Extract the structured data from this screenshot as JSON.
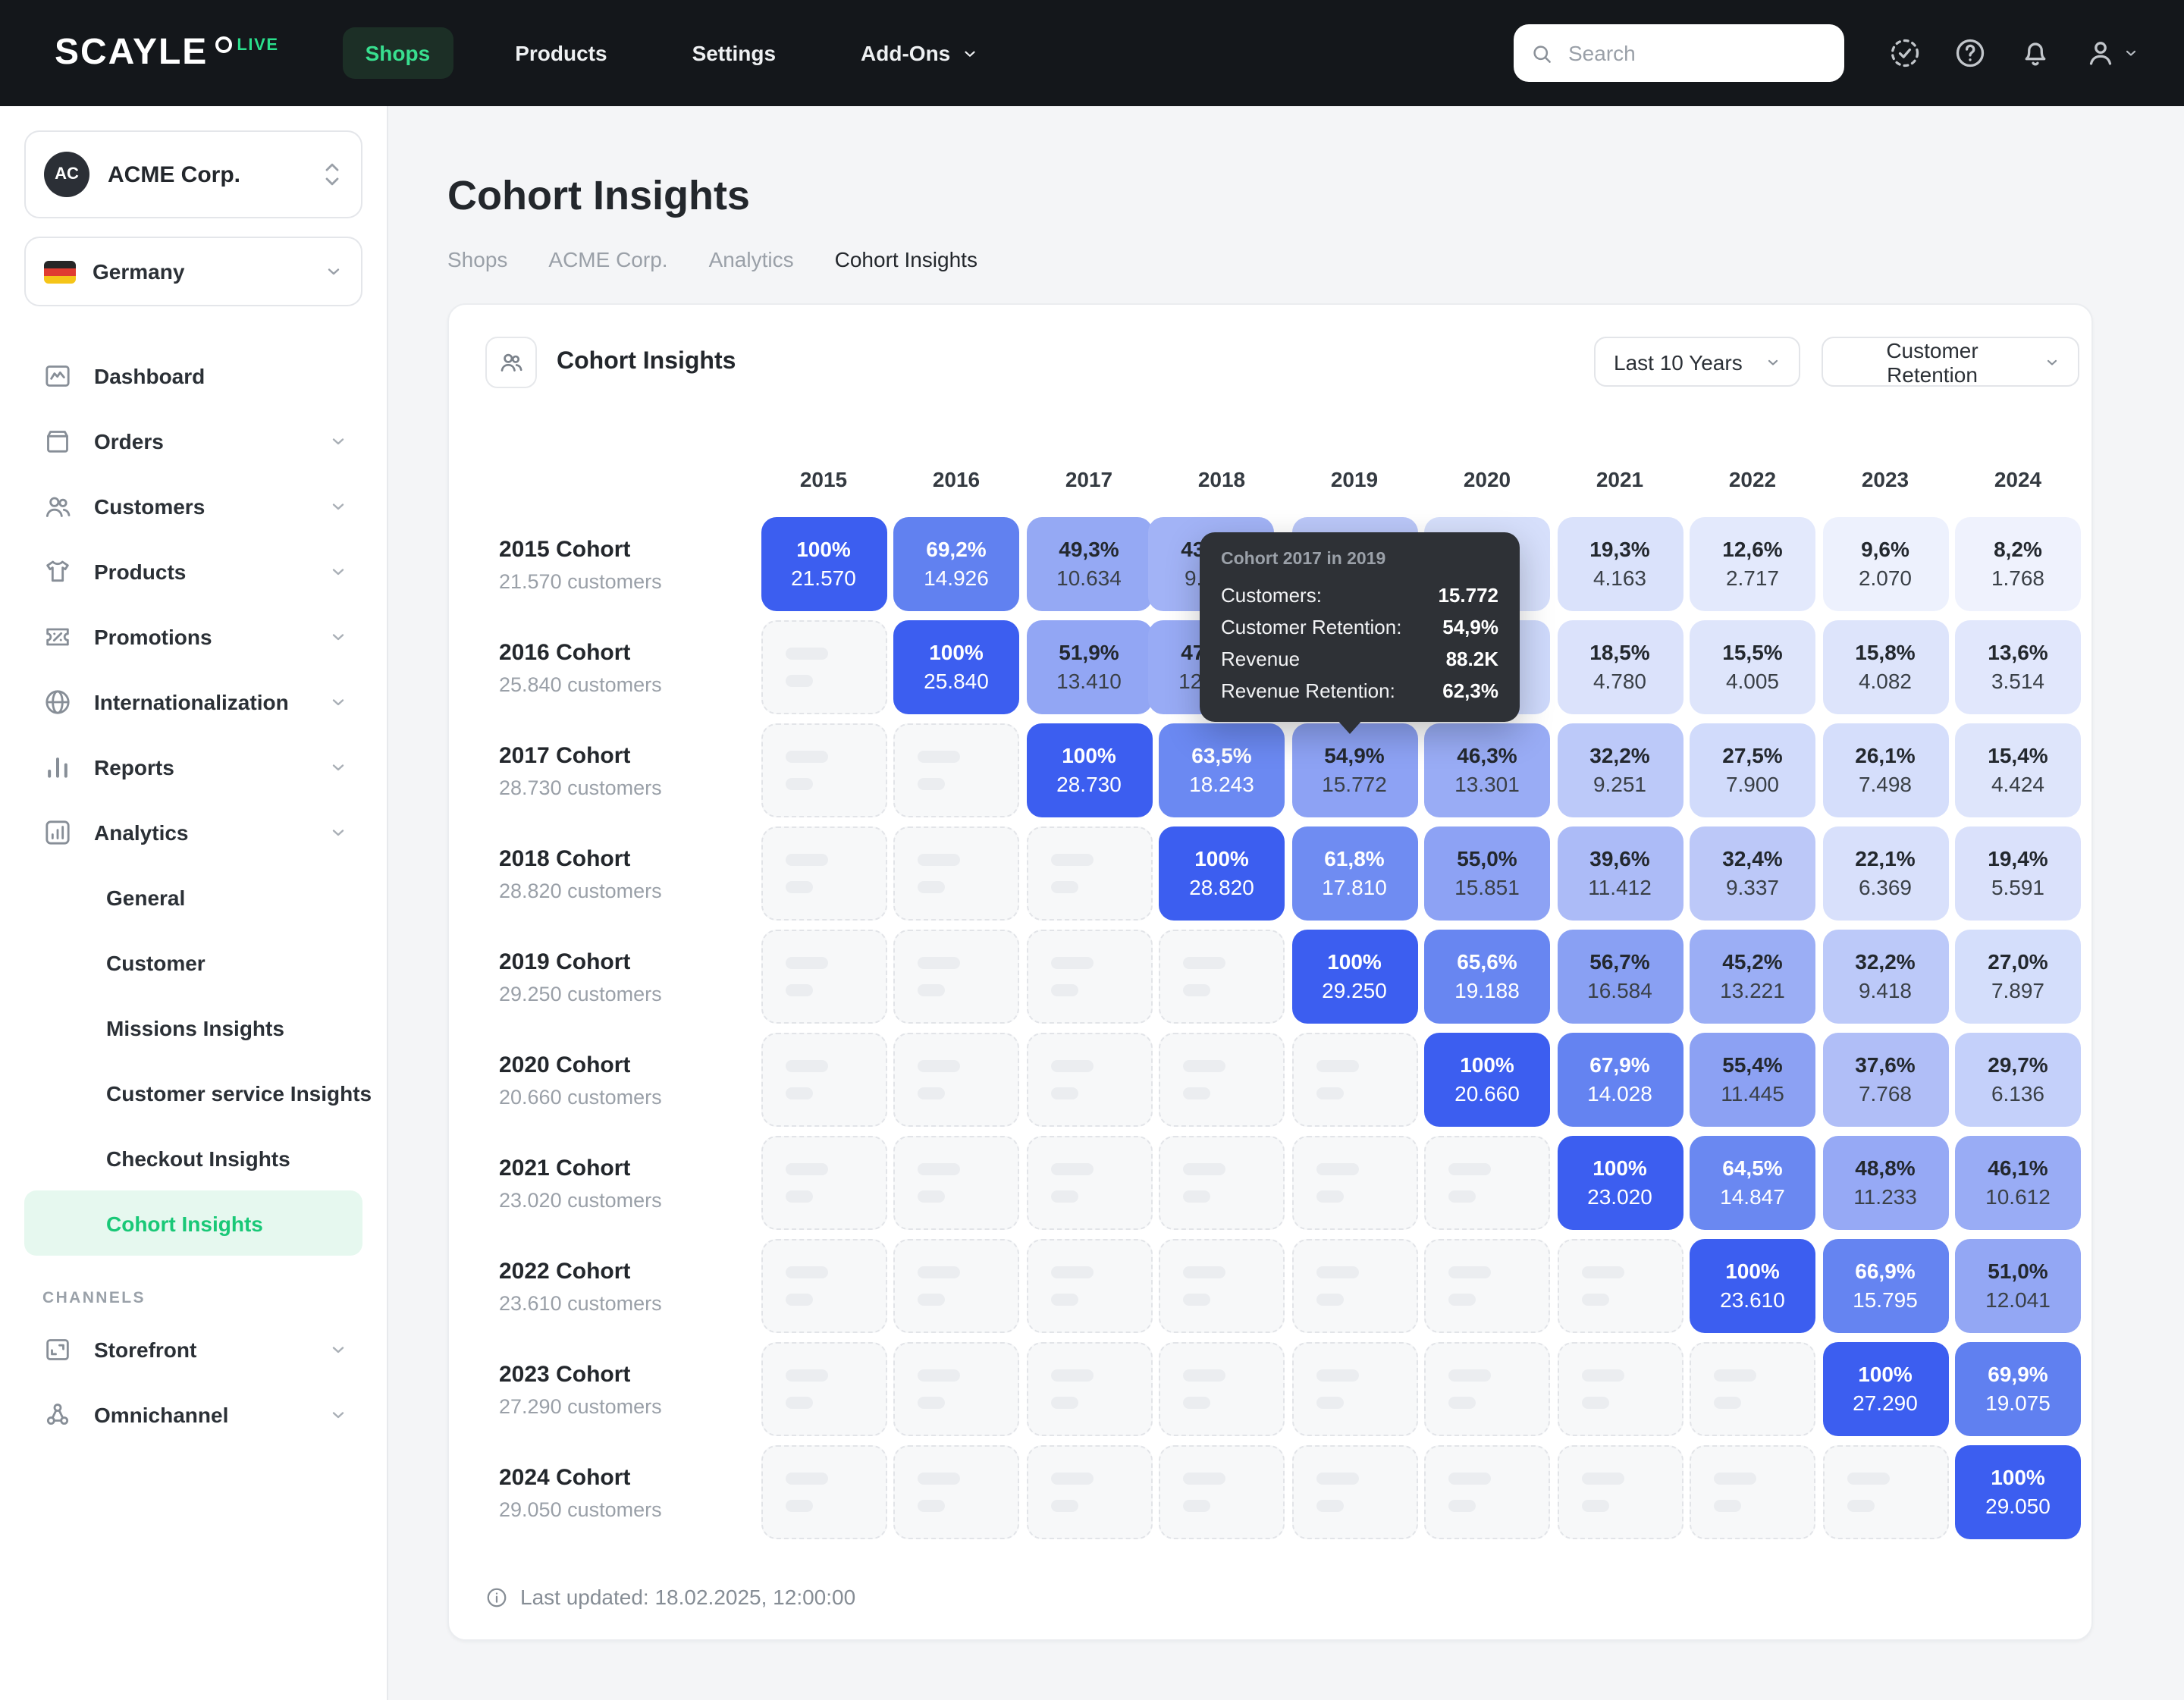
{
  "topbar": {
    "logo": "SCAYLE",
    "logo_badge": "LIVE",
    "nav": [
      {
        "label": "Shops",
        "active": true
      },
      {
        "label": "Products"
      },
      {
        "label": "Settings"
      },
      {
        "label": "Add-Ons",
        "chevron": true
      }
    ],
    "search_placeholder": "Search",
    "icons": [
      "status-check-icon",
      "help-icon",
      "bell-icon",
      "user-icon"
    ]
  },
  "sidebar": {
    "org": {
      "initials": "AC",
      "name": "ACME Corp."
    },
    "country": {
      "name": "Germany"
    },
    "items": [
      {
        "label": "Dashboard",
        "icon": "dashboard"
      },
      {
        "label": "Orders",
        "icon": "orders",
        "chevron": true
      },
      {
        "label": "Customers",
        "icon": "customers",
        "chevron": true
      },
      {
        "label": "Products",
        "icon": "products",
        "chevron": true
      },
      {
        "label": "Promotions",
        "icon": "promotions",
        "chevron": true
      },
      {
        "label": "Internationalization",
        "icon": "globe",
        "chevron": true
      },
      {
        "label": "Reports",
        "icon": "reports",
        "chevron": true
      },
      {
        "label": "Analytics",
        "icon": "analytics",
        "chevron": true,
        "expanded": true
      },
      {
        "label": "General",
        "sub": true
      },
      {
        "label": "Customer",
        "sub": true
      },
      {
        "label": "Missions Insights",
        "sub": true
      },
      {
        "label": "Customer service Insights",
        "sub": true
      },
      {
        "label": "Checkout Insights",
        "sub": true
      },
      {
        "label": "Cohort Insights",
        "sub": true,
        "active": true
      }
    ],
    "channels_label": "CHANNELS",
    "channels": [
      {
        "label": "Storefront",
        "icon": "storefront",
        "chevron": true
      },
      {
        "label": "Omnichannel",
        "icon": "omnichannel",
        "chevron": true
      }
    ]
  },
  "page": {
    "title": "Cohort Insights",
    "breadcrumb": [
      "Shops",
      "ACME Corp.",
      "Analytics",
      "Cohort Insights"
    ]
  },
  "panel": {
    "title": "Cohort Insights",
    "range_dropdown": "Last 10 Years",
    "metric_dropdown": "Customer Retention",
    "last_updated": "Last updated: 18.02.2025, 12:00:00"
  },
  "tooltip": {
    "title": "Cohort 2017 in 2019",
    "rows": [
      {
        "label": "Customers:",
        "value": "15.772"
      },
      {
        "label": "Customer Retention:",
        "value": "54,9%"
      },
      {
        "label": "Revenue",
        "value": "88.2K"
      },
      {
        "label": "Revenue Retention:",
        "value": "62,3%"
      }
    ]
  },
  "chart_data": {
    "type": "heatmap",
    "title": "Cohort Insights - Customer Retention",
    "columns": [
      "2015",
      "2016",
      "2017",
      "2018",
      "2019",
      "2020",
      "2021",
      "2022",
      "2023",
      "2024"
    ],
    "white_text_threshold": 60,
    "color_scale": {
      "low": "#f3f5fe",
      "high": "#3c5ef0"
    },
    "rows": [
      {
        "cohort": "2015 Cohort",
        "customers": "21.570 customers",
        "cells": [
          {
            "pct": "100%",
            "value": "21.570",
            "p": 100
          },
          {
            "pct": "69,2%",
            "value": "14.926",
            "p": 69.2
          },
          {
            "pct": "49,3%",
            "value": "10.634",
            "p": 49.3
          },
          {
            "pct": "43,1%",
            "value": "9.296",
            "p": 43.1,
            "occluded": "partial"
          },
          {
            "pct": "",
            "value": "",
            "p": 33,
            "occluded": "full"
          },
          {
            "pct": "",
            "value": "",
            "p": 24,
            "occluded": "full"
          },
          {
            "pct": "19,3%",
            "value": "4.163",
            "p": 19.3
          },
          {
            "pct": "12,6%",
            "value": "2.717",
            "p": 12.6
          },
          {
            "pct": "9,6%",
            "value": "2.070",
            "p": 9.6
          },
          {
            "pct": "8,2%",
            "value": "1.768",
            "p": 8.2
          }
        ]
      },
      {
        "cohort": "2016 Cohort",
        "customers": "25.840 customers",
        "cells": [
          {
            "pct": "100%",
            "value": "25.840",
            "p": 100
          },
          {
            "pct": "51,9%",
            "value": "13.410",
            "p": 51.9
          },
          {
            "pct": "47,2%",
            "value": "12.198",
            "p": 47.2,
            "occluded": "partial"
          },
          {
            "pct": "",
            "value": "",
            "p": 37,
            "occluded": "full"
          },
          {
            "pct": "",
            "value": "",
            "p": 28,
            "occluded": "full"
          },
          {
            "pct": "18,5%",
            "value": "4.780",
            "p": 18.5
          },
          {
            "pct": "15,5%",
            "value": "4.005",
            "p": 15.5
          },
          {
            "pct": "15,8%",
            "value": "4.082",
            "p": 15.8
          },
          {
            "pct": "13,6%",
            "value": "3.514",
            "p": 13.6
          }
        ]
      },
      {
        "cohort": "2017 Cohort",
        "customers": "28.730 customers",
        "cells": [
          {
            "pct": "100%",
            "value": "28.730",
            "p": 100
          },
          {
            "pct": "63,5%",
            "value": "18.243",
            "p": 63.5
          },
          {
            "pct": "54,9%",
            "value": "15.772",
            "p": 54.9,
            "highlighted": true
          },
          {
            "pct": "46,3%",
            "value": "13.301",
            "p": 46.3
          },
          {
            "pct": "32,2%",
            "value": "9.251",
            "p": 32.2
          },
          {
            "pct": "27,5%",
            "value": "7.900",
            "p": 27.5
          },
          {
            "pct": "26,1%",
            "value": "7.498",
            "p": 26.1
          },
          {
            "pct": "15,4%",
            "value": "4.424",
            "p": 15.4
          }
        ]
      },
      {
        "cohort": "2018 Cohort",
        "customers": "28.820 customers",
        "cells": [
          {
            "pct": "100%",
            "value": "28.820",
            "p": 100
          },
          {
            "pct": "61,8%",
            "value": "17.810",
            "p": 61.8
          },
          {
            "pct": "55,0%",
            "value": "15.851",
            "p": 55.0
          },
          {
            "pct": "39,6%",
            "value": "11.412",
            "p": 39.6
          },
          {
            "pct": "32,4%",
            "value": "9.337",
            "p": 32.4
          },
          {
            "pct": "22,1%",
            "value": "6.369",
            "p": 22.1
          },
          {
            "pct": "19,4%",
            "value": "5.591",
            "p": 19.4
          }
        ]
      },
      {
        "cohort": "2019 Cohort",
        "customers": "29.250 customers",
        "cells": [
          {
            "pct": "100%",
            "value": "29.250",
            "p": 100
          },
          {
            "pct": "65,6%",
            "value": "19.188",
            "p": 65.6
          },
          {
            "pct": "56,7%",
            "value": "16.584",
            "p": 56.7
          },
          {
            "pct": "45,2%",
            "value": "13.221",
            "p": 45.2
          },
          {
            "pct": "32,2%",
            "value": "9.418",
            "p": 32.2
          },
          {
            "pct": "27,0%",
            "value": "7.897",
            "p": 27.0
          }
        ]
      },
      {
        "cohort": "2020 Cohort",
        "customers": "20.660 customers",
        "cells": [
          {
            "pct": "100%",
            "value": "20.660",
            "p": 100
          },
          {
            "pct": "67,9%",
            "value": "14.028",
            "p": 67.9
          },
          {
            "pct": "55,4%",
            "value": "11.445",
            "p": 55.4
          },
          {
            "pct": "37,6%",
            "value": "7.768",
            "p": 37.6
          },
          {
            "pct": "29,7%",
            "value": "6.136",
            "p": 29.7
          }
        ]
      },
      {
        "cohort": "2021 Cohort",
        "customers": "23.020 customers",
        "cells": [
          {
            "pct": "100%",
            "value": "23.020",
            "p": 100
          },
          {
            "pct": "64,5%",
            "value": "14.847",
            "p": 64.5
          },
          {
            "pct": "48,8%",
            "value": "11.233",
            "p": 48.8
          },
          {
            "pct": "46,1%",
            "value": "10.612",
            "p": 46.1
          }
        ]
      },
      {
        "cohort": "2022 Cohort",
        "customers": "23.610 customers",
        "cells": [
          {
            "pct": "100%",
            "value": "23.610",
            "p": 100
          },
          {
            "pct": "66,9%",
            "value": "15.795",
            "p": 66.9
          },
          {
            "pct": "51,0%",
            "value": "12.041",
            "p": 51.0
          }
        ]
      },
      {
        "cohort": "2023 Cohort",
        "customers": "27.290 customers",
        "cells": [
          {
            "pct": "100%",
            "value": "27.290",
            "p": 100
          },
          {
            "pct": "69,9%",
            "value": "19.075",
            "p": 69.9
          }
        ]
      },
      {
        "cohort": "2024 Cohort",
        "customers": "29.050 customers",
        "cells": [
          {
            "pct": "100%",
            "value": "29.050",
            "p": 100
          }
        ]
      }
    ]
  }
}
